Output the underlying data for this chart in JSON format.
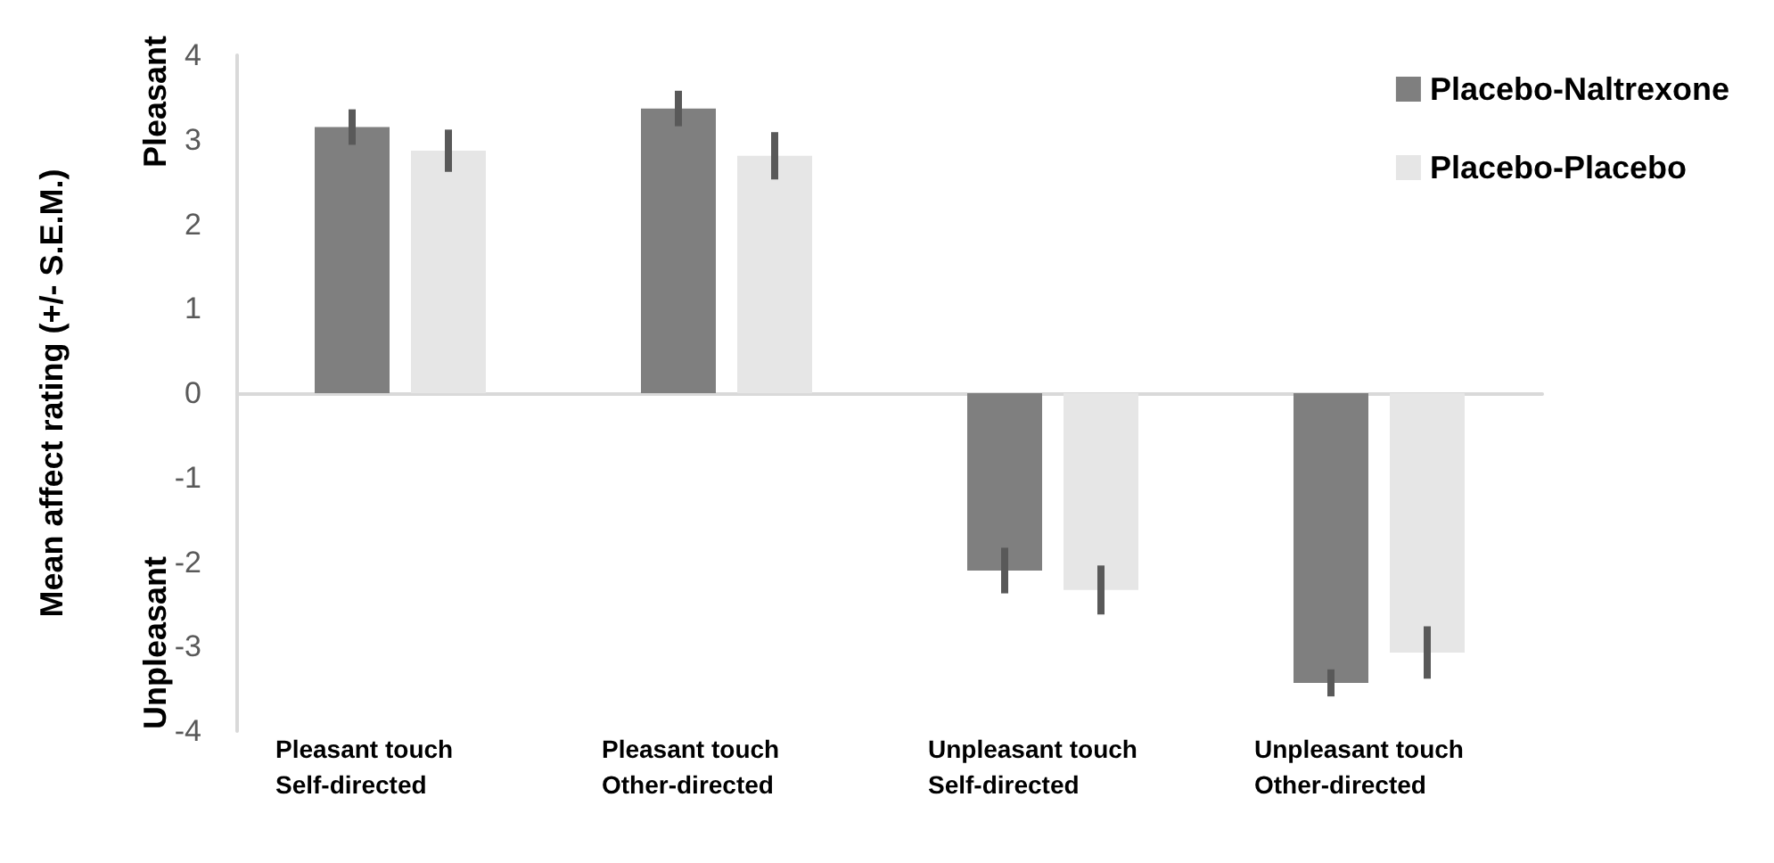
{
  "chart_data": {
    "type": "bar",
    "ylabel": "Mean affect rating (+/- S.E.M.)",
    "annotations": [
      "Pleasant",
      "Unpleasant"
    ],
    "categories": [
      "Pleasant touch\nSelf-directed",
      "Pleasant touch\nOther-directed",
      "Unpleasant touch\nSelf-directed",
      "Unpleasant touch\nOther-directed"
    ],
    "series": [
      {
        "name": "Placebo-Naltrexone",
        "color": "#7f7f7f",
        "values": [
          3.15,
          3.37,
          -2.1,
          -3.43
        ],
        "errors": [
          0.21,
          0.21,
          0.27,
          0.16
        ]
      },
      {
        "name": "Placebo-Placebo",
        "color": "#e6e6e6",
        "values": [
          2.87,
          2.81,
          -2.33,
          -3.07
        ],
        "errors": [
          0.25,
          0.28,
          0.29,
          0.31
        ]
      }
    ],
    "ylim": [
      -4,
      4
    ],
    "yticks": [
      -4,
      -3,
      -2,
      -1,
      0,
      1,
      2,
      3,
      4
    ],
    "legend": "top right"
  }
}
